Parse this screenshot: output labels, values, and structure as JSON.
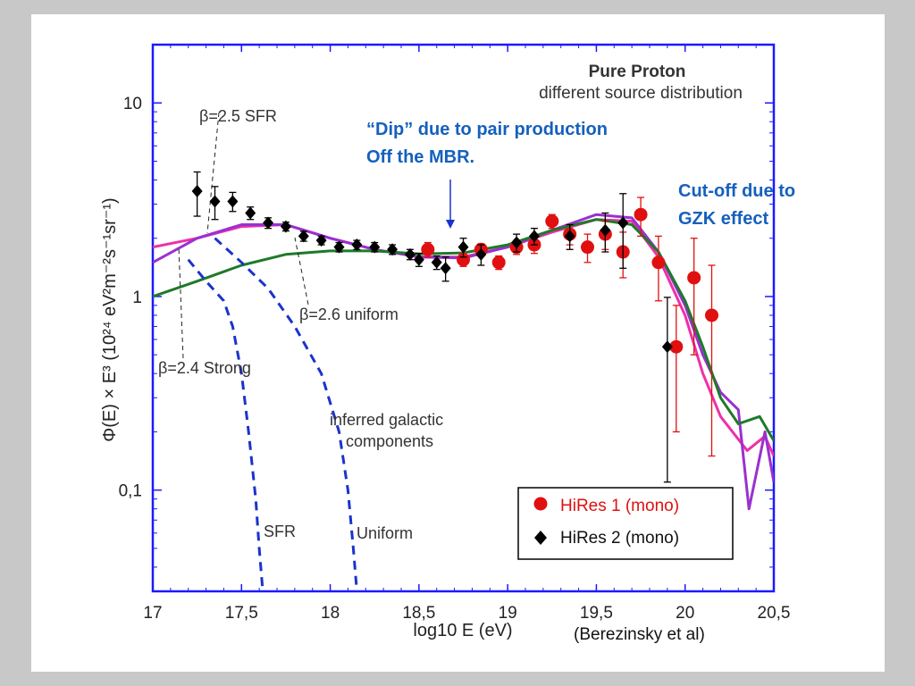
{
  "credit": "(Berezinsky et al)",
  "annotations": {
    "dip_line1": "“Dip” due to pair production",
    "dip_line2": "Off the MBR.",
    "gzk_line1": "Cut-off due to",
    "gzk_line2": "GZK effect"
  },
  "colors": {
    "frame": "#1a1aff",
    "hires1": "#e01010",
    "hires2": "#000000",
    "beta25_sfr": "#ee30a8",
    "beta26_uniform": "#9a30d0",
    "beta24_strong": "#1e7a2a",
    "galactic": "#1a33cc",
    "note": "#1560bd"
  },
  "chart_data": {
    "type": "scatter",
    "title": "Pure Proton",
    "subtitle": "different source distribution",
    "xlabel": "log10 E (eV)",
    "ylabel": "Φ(E) × E³ (10²⁴ eV²m⁻²s⁻¹sr⁻¹)",
    "xlim": [
      17,
      20.5
    ],
    "ylim": [
      0.03,
      20
    ],
    "yscale": "log",
    "xticks": [
      17,
      17.5,
      18,
      18.5,
      19,
      19.5,
      20,
      20.5
    ],
    "xtick_labels": [
      "17",
      "17,5",
      "18",
      "18,5",
      "19",
      "19,5",
      "20",
      "20,5"
    ],
    "yticks": [
      0.1,
      1,
      10
    ],
    "ytick_labels": [
      "0,1",
      "1",
      "10"
    ],
    "legend_position": "bottom-right",
    "curve_labels": {
      "sfr": "β=2.5 SFR",
      "uniform": "β=2.6 uniform",
      "strong": "β=2.4 Strong",
      "galactic1": "inferred galactic",
      "galactic2": "components",
      "galactic_sfr": "SFR",
      "galactic_uniform": "Uniform"
    },
    "series": [
      {
        "name": "HiRes 1 (mono)",
        "marker": "circle",
        "points": [
          [
            18.55,
            1.75,
            0.15
          ],
          [
            18.75,
            1.55,
            0.12
          ],
          [
            18.85,
            1.75,
            0.12
          ],
          [
            18.95,
            1.5,
            0.12
          ],
          [
            19.05,
            1.8,
            0.15
          ],
          [
            19.15,
            1.85,
            0.18
          ],
          [
            19.25,
            2.45,
            0.2
          ],
          [
            19.35,
            2.1,
            0.25
          ],
          [
            19.45,
            1.8,
            0.3
          ],
          [
            19.55,
            2.1,
            0.35
          ],
          [
            19.65,
            1.7,
            0.45
          ],
          [
            19.75,
            2.65,
            0.6
          ],
          [
            19.85,
            1.5,
            0.55
          ],
          [
            19.95,
            0.55,
            0.35
          ],
          [
            20.05,
            1.25,
            0.75
          ],
          [
            20.15,
            0.8,
            0.65
          ]
        ]
      },
      {
        "name": "HiRes 2 (mono)",
        "marker": "diamond",
        "points": [
          [
            17.25,
            3.5,
            0.9
          ],
          [
            17.35,
            3.1,
            0.6
          ],
          [
            17.45,
            3.1,
            0.35
          ],
          [
            17.55,
            2.7,
            0.2
          ],
          [
            17.65,
            2.4,
            0.15
          ],
          [
            17.75,
            2.3,
            0.12
          ],
          [
            17.85,
            2.05,
            0.12
          ],
          [
            17.95,
            1.95,
            0.1
          ],
          [
            18.05,
            1.8,
            0.1
          ],
          [
            18.15,
            1.85,
            0.1
          ],
          [
            18.25,
            1.8,
            0.1
          ],
          [
            18.35,
            1.75,
            0.1
          ],
          [
            18.45,
            1.65,
            0.1
          ],
          [
            18.5,
            1.55,
            0.12
          ],
          [
            18.6,
            1.5,
            0.12
          ],
          [
            18.65,
            1.4,
            0.2
          ],
          [
            18.75,
            1.8,
            0.2
          ],
          [
            18.85,
            1.65,
            0.2
          ],
          [
            19.05,
            1.9,
            0.2
          ],
          [
            19.15,
            2.05,
            0.2
          ],
          [
            19.35,
            2.05,
            0.3
          ],
          [
            19.55,
            2.2,
            0.5
          ],
          [
            19.65,
            2.4,
            1.0
          ],
          [
            19.9,
            0.55,
            0.44
          ]
        ]
      },
      {
        "name": "β=2.5 SFR",
        "type": "line",
        "points": [
          [
            17,
            1.8
          ],
          [
            17.25,
            2.0
          ],
          [
            17.5,
            2.3
          ],
          [
            17.75,
            2.35
          ],
          [
            18,
            2.0
          ],
          [
            18.25,
            1.75
          ],
          [
            18.5,
            1.6
          ],
          [
            18.75,
            1.6
          ],
          [
            19,
            1.8
          ],
          [
            19.25,
            2.15
          ],
          [
            19.5,
            2.5
          ],
          [
            19.7,
            2.45
          ],
          [
            19.85,
            1.6
          ],
          [
            20,
            0.8
          ],
          [
            20.1,
            0.4
          ],
          [
            20.2,
            0.24
          ],
          [
            20.35,
            0.16
          ],
          [
            20.45,
            0.19
          ],
          [
            20.5,
            0.15
          ]
        ]
      },
      {
        "name": "β=2.6 uniform",
        "type": "line",
        "points": [
          [
            17,
            1.5
          ],
          [
            17.25,
            2.0
          ],
          [
            17.5,
            2.35
          ],
          [
            17.75,
            2.35
          ],
          [
            18,
            2.0
          ],
          [
            18.25,
            1.75
          ],
          [
            18.5,
            1.6
          ],
          [
            18.75,
            1.58
          ],
          [
            19,
            1.8
          ],
          [
            19.25,
            2.2
          ],
          [
            19.5,
            2.65
          ],
          [
            19.7,
            2.55
          ],
          [
            19.85,
            1.7
          ],
          [
            20,
            0.9
          ],
          [
            20.1,
            0.5
          ],
          [
            20.2,
            0.32
          ],
          [
            20.3,
            0.26
          ],
          [
            20.36,
            0.08
          ],
          [
            20.45,
            0.2
          ],
          [
            20.5,
            0.11
          ]
        ]
      },
      {
        "name": "β=2.4 Strong",
        "type": "line",
        "points": [
          [
            17,
            1.0
          ],
          [
            17.25,
            1.2
          ],
          [
            17.5,
            1.45
          ],
          [
            17.75,
            1.65
          ],
          [
            18,
            1.72
          ],
          [
            18.25,
            1.72
          ],
          [
            18.5,
            1.66
          ],
          [
            18.75,
            1.68
          ],
          [
            19,
            1.85
          ],
          [
            19.25,
            2.2
          ],
          [
            19.5,
            2.5
          ],
          [
            19.7,
            2.35
          ],
          [
            19.85,
            1.7
          ],
          [
            20,
            0.95
          ],
          [
            20.1,
            0.55
          ],
          [
            20.2,
            0.3
          ],
          [
            20.3,
            0.22
          ],
          [
            20.42,
            0.24
          ],
          [
            20.5,
            0.18
          ]
        ]
      },
      {
        "name": "inferred galactic SFR",
        "type": "line",
        "points": [
          [
            17.2,
            1.55
          ],
          [
            17.3,
            1.2
          ],
          [
            17.4,
            0.95
          ],
          [
            17.45,
            0.7
          ],
          [
            17.5,
            0.4
          ],
          [
            17.54,
            0.2
          ],
          [
            17.58,
            0.09
          ],
          [
            17.6,
            0.05
          ],
          [
            17.62,
            0.03
          ]
        ]
      },
      {
        "name": "inferred galactic Uniform",
        "type": "line",
        "points": [
          [
            17.35,
            2.0
          ],
          [
            17.5,
            1.5
          ],
          [
            17.65,
            1.1
          ],
          [
            17.8,
            0.7
          ],
          [
            17.95,
            0.4
          ],
          [
            18.05,
            0.2
          ],
          [
            18.1,
            0.1
          ],
          [
            18.13,
            0.05
          ],
          [
            18.15,
            0.03
          ]
        ]
      }
    ]
  }
}
